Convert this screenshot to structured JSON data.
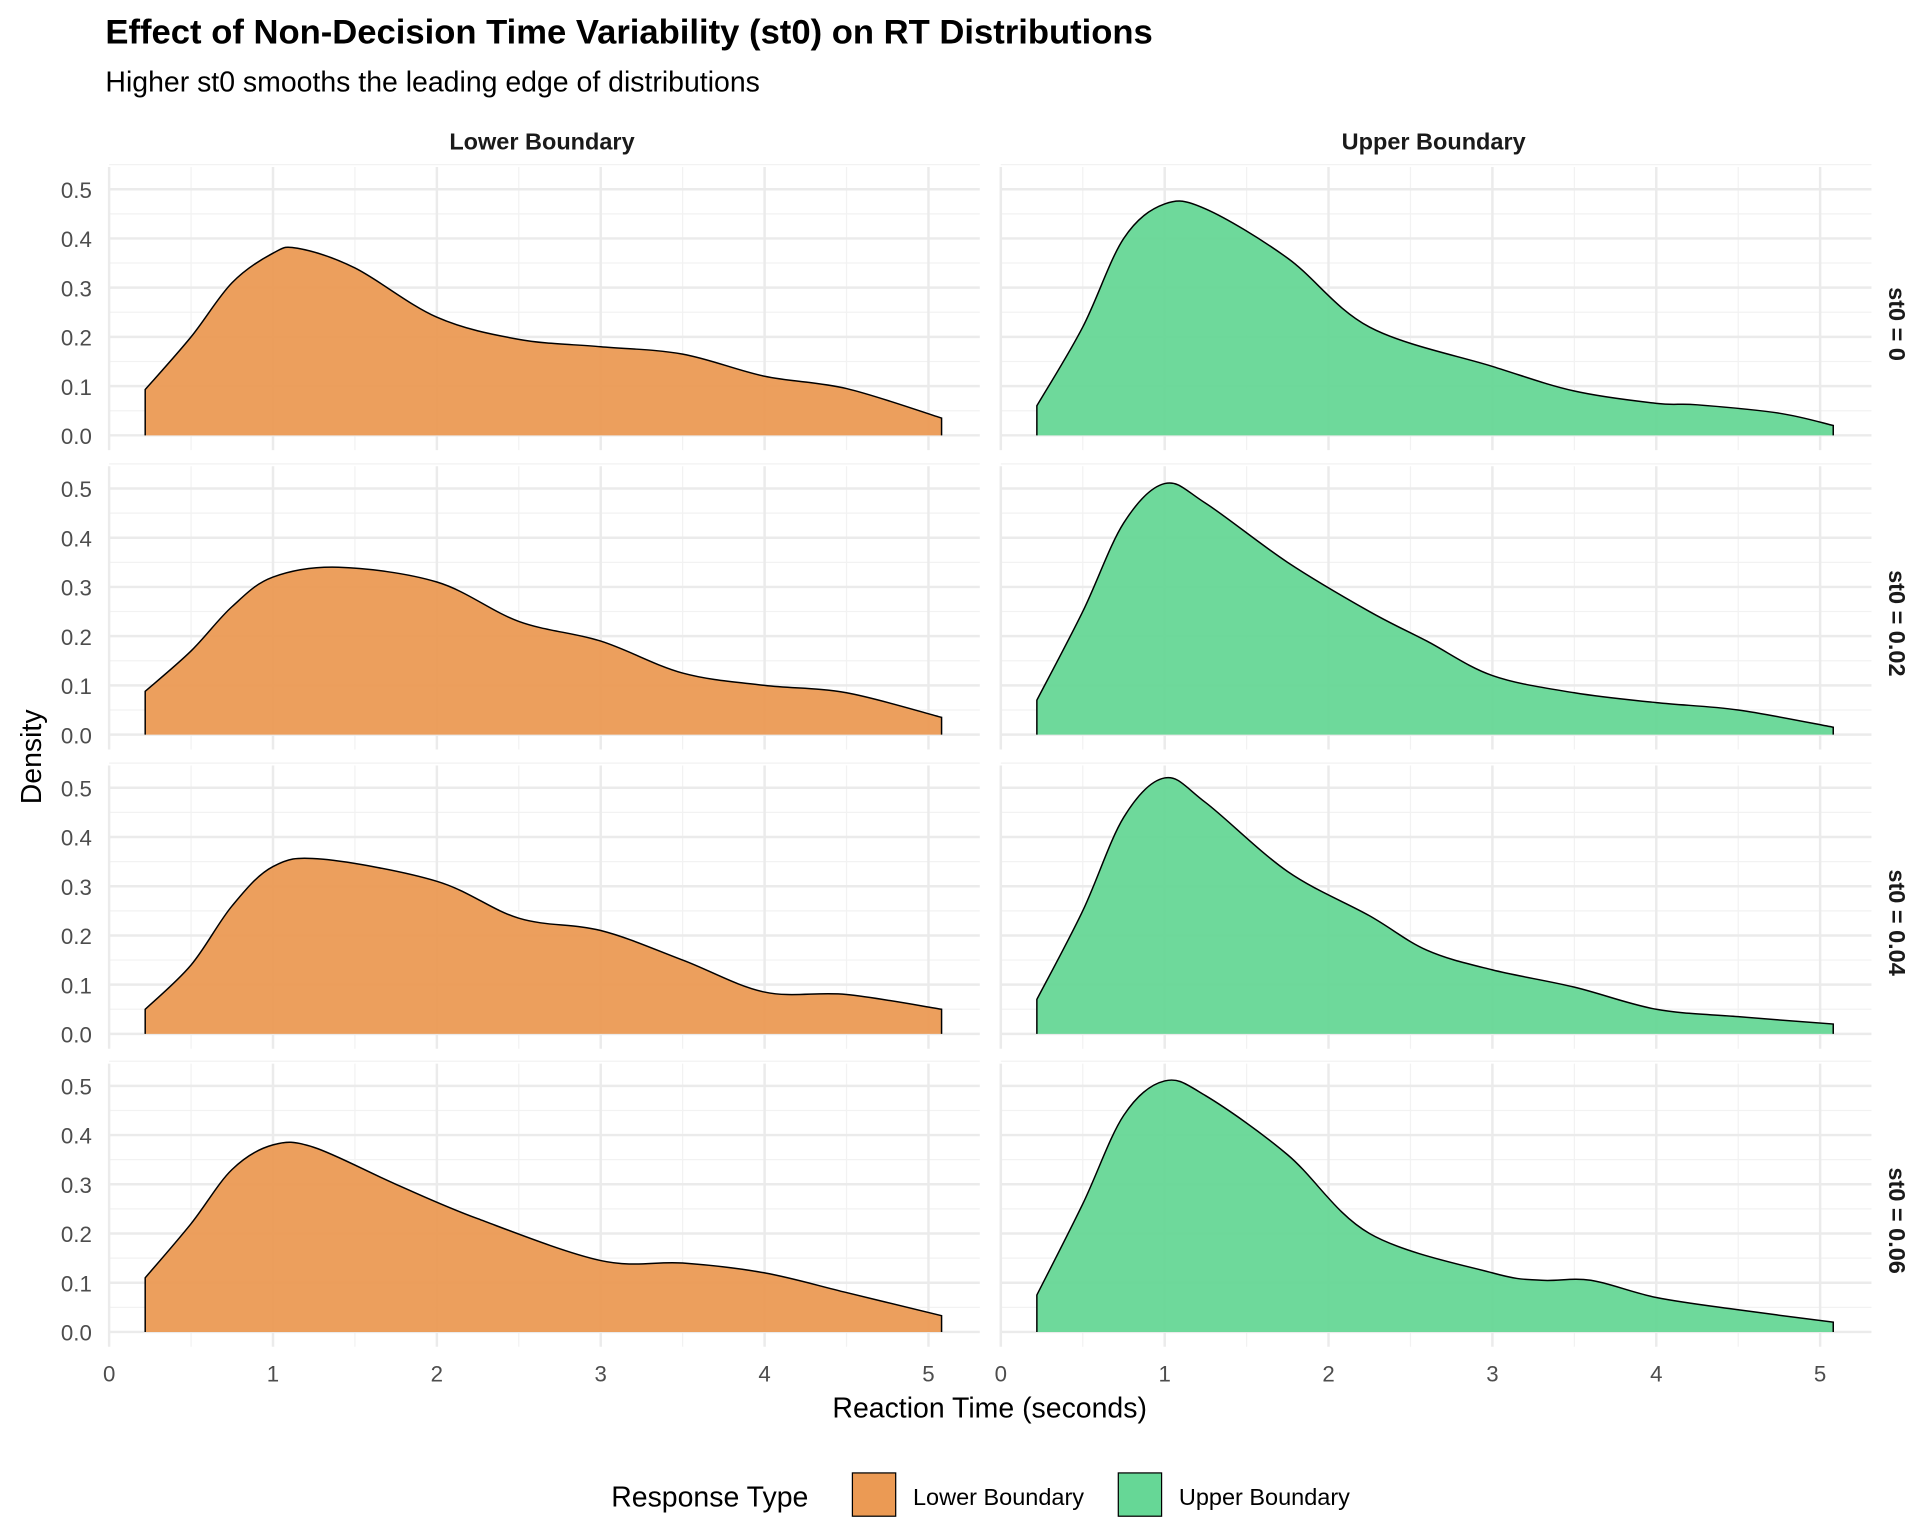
{
  "chart_data": {
    "type": "area",
    "title": "Effect of Non-Decision Time Variability (st0) on RT Distributions",
    "subtitle": "Higher st0 smooths the leading edge of distributions",
    "xlabel": "Reaction Time (seconds)",
    "ylabel": "Density",
    "xlim": [
      0,
      5.2
    ],
    "ylim": [
      0,
      0.55
    ],
    "xticks": [
      "0",
      "1",
      "2",
      "3",
      "4",
      "5"
    ],
    "yticks": [
      "0.0",
      "0.1",
      "0.2",
      "0.3",
      "0.4",
      "0.5"
    ],
    "grid": true,
    "legend": {
      "title": "Response Type",
      "position": "bottom",
      "entries": [
        "Lower Boundary",
        "Upper Boundary"
      ]
    },
    "colors": {
      "Lower Boundary": "#EB9A54",
      "Upper Boundary": "#66D796"
    },
    "columns": [
      "Lower Boundary",
      "Upper Boundary"
    ],
    "rows": [
      "st0 = 0",
      "st0 = 0.02",
      "st0 = 0.04",
      "st0 = 0.06"
    ],
    "panels": [
      {
        "row": "st0 = 0",
        "column": "Lower Boundary",
        "x": [
          0.22,
          0.5,
          0.75,
          1,
          1.15,
          1.5,
          2,
          2.5,
          3,
          3.5,
          4,
          4.5,
          5.08
        ],
        "y": [
          0.093,
          0.2,
          0.31,
          0.37,
          0.38,
          0.34,
          0.24,
          0.195,
          0.18,
          0.165,
          0.12,
          0.095,
          0.035
        ]
      },
      {
        "row": "st0 = 0",
        "column": "Upper Boundary",
        "x": [
          0.22,
          0.5,
          0.75,
          1,
          1.25,
          1.75,
          2.25,
          3,
          3.5,
          4,
          4.25,
          4.75,
          5.08
        ],
        "y": [
          0.06,
          0.22,
          0.4,
          0.47,
          0.46,
          0.36,
          0.22,
          0.14,
          0.09,
          0.065,
          0.062,
          0.045,
          0.02
        ]
      },
      {
        "row": "st0 = 0.02",
        "column": "Lower Boundary",
        "x": [
          0.22,
          0.5,
          0.75,
          1,
          1.4,
          2,
          2.5,
          3,
          3.5,
          4,
          4.5,
          5.08
        ],
        "y": [
          0.088,
          0.17,
          0.26,
          0.32,
          0.34,
          0.31,
          0.23,
          0.19,
          0.125,
          0.1,
          0.085,
          0.035
        ]
      },
      {
        "row": "st0 = 0.02",
        "column": "Upper Boundary",
        "x": [
          0.22,
          0.5,
          0.75,
          1,
          1.25,
          1.75,
          2.25,
          2.6,
          3,
          3.5,
          4,
          4.5,
          5.08
        ],
        "y": [
          0.07,
          0.25,
          0.43,
          0.51,
          0.47,
          0.35,
          0.25,
          0.19,
          0.12,
          0.085,
          0.065,
          0.05,
          0.015
        ]
      },
      {
        "row": "st0 = 0.04",
        "column": "Lower Boundary",
        "x": [
          0.22,
          0.5,
          0.75,
          1,
          1.3,
          2,
          2.5,
          3,
          3.5,
          4,
          4.5,
          5.08
        ],
        "y": [
          0.05,
          0.14,
          0.26,
          0.34,
          0.355,
          0.31,
          0.235,
          0.21,
          0.15,
          0.085,
          0.08,
          0.05
        ]
      },
      {
        "row": "st0 = 0.04",
        "column": "Upper Boundary",
        "x": [
          0.22,
          0.5,
          0.75,
          1,
          1.25,
          1.75,
          2.25,
          2.6,
          3,
          3.5,
          4,
          4.5,
          5.08
        ],
        "y": [
          0.07,
          0.25,
          0.44,
          0.52,
          0.47,
          0.33,
          0.24,
          0.17,
          0.13,
          0.095,
          0.05,
          0.035,
          0.02
        ]
      },
      {
        "row": "st0 = 0.06",
        "column": "Lower Boundary",
        "x": [
          0.22,
          0.5,
          0.75,
          1,
          1.25,
          1.75,
          2.25,
          3,
          3.5,
          4,
          4.5,
          5.08
        ],
        "y": [
          0.11,
          0.22,
          0.33,
          0.38,
          0.375,
          0.3,
          0.23,
          0.145,
          0.14,
          0.12,
          0.08,
          0.033
        ]
      },
      {
        "row": "st0 = 0.06",
        "column": "Upper Boundary",
        "x": [
          0.22,
          0.5,
          0.75,
          1,
          1.25,
          1.75,
          2.25,
          3,
          3.3,
          3.6,
          4,
          4.5,
          5.08
        ],
        "y": [
          0.075,
          0.26,
          0.44,
          0.51,
          0.48,
          0.36,
          0.2,
          0.12,
          0.105,
          0.105,
          0.07,
          0.045,
          0.02
        ]
      }
    ]
  }
}
